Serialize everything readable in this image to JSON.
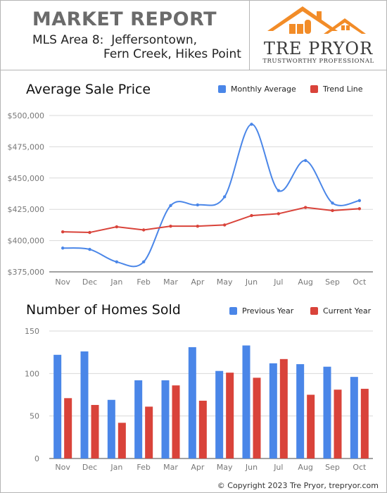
{
  "header": {
    "title": "MARKET REPORT",
    "subtitle_line1": "MLS Area 8:  Jeffersontown,",
    "subtitle_line2": "Fern Creek, Hikes Point",
    "brand_name": "TRE PRYOR",
    "brand_tagline": "TRUSTWORTHY PROFESSIONAL"
  },
  "colors": {
    "blue": "#4a86e8",
    "red": "#d9433a",
    "grid": "#d9d9d9",
    "logo_orange": "#f28c28"
  },
  "chart_data": [
    {
      "type": "line",
      "title": "Average Sale Price",
      "categories": [
        "Nov",
        "Dec",
        "Jan",
        "Feb",
        "Mar",
        "Apr",
        "May",
        "Jun",
        "Jul",
        "Aug",
        "Sep",
        "Oct"
      ],
      "series": [
        {
          "name": "Monthly Average",
          "color": "#4a86e8",
          "smooth": true,
          "values": [
            394000,
            393000,
            383000,
            383000,
            428000,
            428500,
            435000,
            493000,
            440000,
            464000,
            430000,
            432000
          ]
        },
        {
          "name": "Trend Line",
          "color": "#d9433a",
          "smooth": false,
          "values": [
            407000,
            406500,
            411000,
            408500,
            411500,
            411500,
            412500,
            420000,
            421500,
            426500,
            424000,
            425500
          ]
        }
      ],
      "yticks": [
        "$375,000",
        "$400,000",
        "$425,000",
        "$450,000",
        "$475,000",
        "$500,000"
      ],
      "ylim": [
        375000,
        500000
      ],
      "grid": true,
      "legend": "top-right"
    },
    {
      "type": "bar",
      "title": "Number of Homes Sold",
      "categories": [
        "Nov",
        "Dec",
        "Jan",
        "Feb",
        "Mar",
        "Apr",
        "May",
        "Jun",
        "Jul",
        "Aug",
        "Sep",
        "Oct"
      ],
      "series": [
        {
          "name": "Previous Year",
          "color": "#4a86e8",
          "values": [
            122,
            126,
            69,
            92,
            92,
            131,
            103,
            133,
            112,
            111,
            108,
            96
          ]
        },
        {
          "name": "Current Year",
          "color": "#d9433a",
          "values": [
            71,
            63,
            42,
            61,
            86,
            68,
            101,
            95,
            117,
            75,
            81,
            82
          ]
        }
      ],
      "yticks": [
        "0",
        "50",
        "100",
        "150"
      ],
      "ylim": [
        0,
        150
      ],
      "grid": true,
      "legend": "top-right"
    }
  ],
  "footer": {
    "copyright": "© Copyright 2023 Tre Pryor, trepryor.com"
  }
}
